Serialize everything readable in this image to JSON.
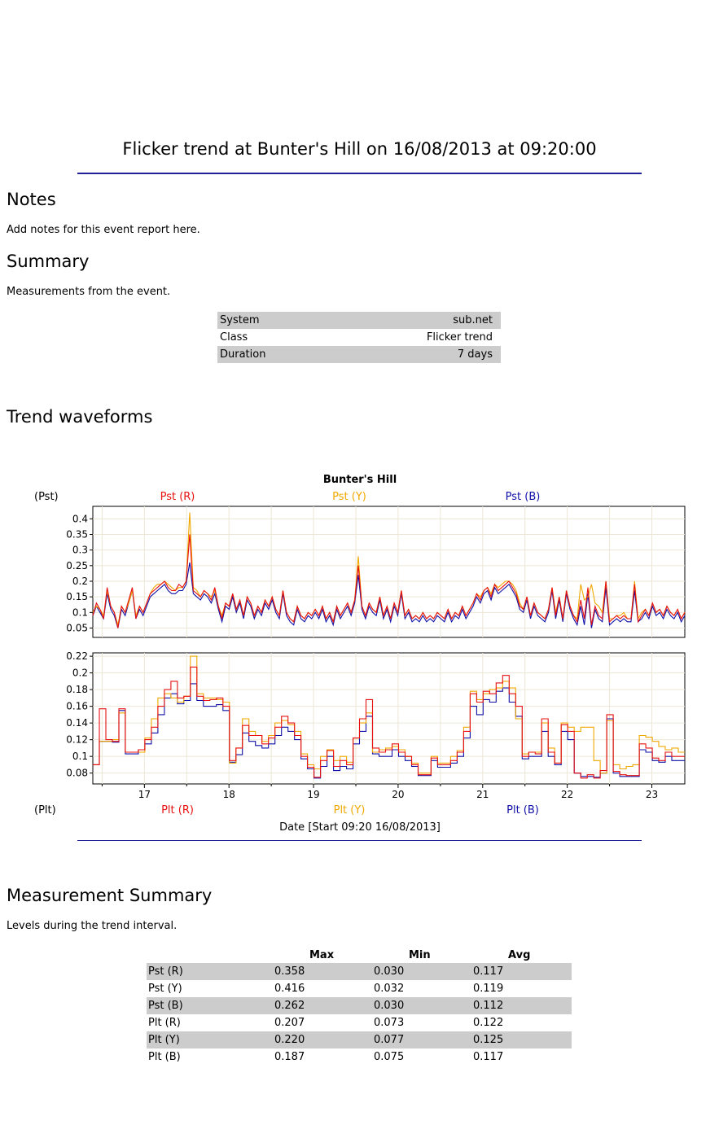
{
  "report": {
    "title": "Flicker trend at Bunter's Hill on 16/08/2013 at 09:20:00"
  },
  "notes": {
    "heading": "Notes",
    "text": "Add notes for this event report here."
  },
  "summary": {
    "heading": "Summary",
    "text": "Measurements from the event.",
    "rows": [
      {
        "label": "System",
        "value": "sub.net"
      },
      {
        "label": "Class",
        "value": "Flicker trend"
      },
      {
        "label": "Duration",
        "value": "7 days"
      }
    ]
  },
  "trend": {
    "heading": "Trend waveforms"
  },
  "chart_data": {
    "type": "line",
    "title": "Bunter's Hill",
    "xlabel": "Date [Start 09:20 16/08/2013]",
    "x_range_days": [
      16.39,
      23.39
    ],
    "x_ticks": [
      "17",
      "18",
      "19",
      "20",
      "21",
      "22",
      "23"
    ],
    "colors": {
      "R": "#e81010",
      "Y": "#f0a800",
      "B": "#1010a8"
    },
    "top_panel": {
      "ylabel": "(Pst)",
      "ylim": [
        0.02,
        0.44
      ],
      "yticks": [
        "0.4",
        "0.35",
        "0.3",
        "0.25",
        "0.2",
        "0.15",
        "0.1",
        "0.05"
      ],
      "series": [
        {
          "name": "Pst (R)",
          "key": "R",
          "max": 0.358,
          "min": 0.03,
          "avg": 0.117,
          "values": [
            0.09,
            0.13,
            0.11,
            0.08,
            0.18,
            0.12,
            0.1,
            0.05,
            0.12,
            0.1,
            0.14,
            0.18,
            0.08,
            0.12,
            0.1,
            0.13,
            0.16,
            0.17,
            0.18,
            0.19,
            0.2,
            0.18,
            0.17,
            0.17,
            0.19,
            0.18,
            0.2,
            0.35,
            0.17,
            0.16,
            0.15,
            0.17,
            0.16,
            0.14,
            0.18,
            0.12,
            0.08,
            0.13,
            0.12,
            0.16,
            0.11,
            0.14,
            0.09,
            0.15,
            0.13,
            0.09,
            0.12,
            0.1,
            0.14,
            0.12,
            0.15,
            0.11,
            0.09,
            0.17,
            0.1,
            0.08,
            0.07,
            0.12,
            0.09,
            0.08,
            0.1,
            0.09,
            0.11,
            0.09,
            0.12,
            0.08,
            0.1,
            0.07,
            0.12,
            0.09,
            0.11,
            0.13,
            0.1,
            0.14,
            0.25,
            0.12,
            0.09,
            0.13,
            0.11,
            0.1,
            0.15,
            0.09,
            0.12,
            0.08,
            0.13,
            0.1,
            0.17,
            0.09,
            0.11,
            0.08,
            0.09,
            0.08,
            0.1,
            0.08,
            0.09,
            0.08,
            0.1,
            0.09,
            0.08,
            0.11,
            0.08,
            0.1,
            0.09,
            0.12,
            0.09,
            0.11,
            0.13,
            0.16,
            0.14,
            0.17,
            0.18,
            0.15,
            0.19,
            0.17,
            0.18,
            0.19,
            0.2,
            0.18,
            0.16,
            0.12,
            0.11,
            0.15,
            0.09,
            0.13,
            0.1,
            0.09,
            0.08,
            0.11,
            0.18,
            0.09,
            0.15,
            0.08,
            0.17,
            0.12,
            0.09,
            0.07,
            0.14,
            0.08,
            0.18,
            0.06,
            0.12,
            0.09,
            0.08,
            0.2,
            0.07,
            0.08,
            0.09,
            0.08,
            0.09,
            0.08,
            0.08,
            0.19,
            0.07,
            0.09,
            0.11,
            0.09,
            0.13,
            0.1,
            0.11,
            0.09,
            0.12,
            0.1,
            0.09,
            0.11,
            0.08,
            0.1
          ]
        },
        {
          "name": "Pst (Y)",
          "key": "Y",
          "max": 0.416,
          "min": 0.032,
          "avg": 0.119,
          "values": [
            0.1,
            0.12,
            0.11,
            0.09,
            0.17,
            0.12,
            0.1,
            0.06,
            0.12,
            0.1,
            0.13,
            0.17,
            0.09,
            0.12,
            0.1,
            0.13,
            0.16,
            0.18,
            0.19,
            0.19,
            0.2,
            0.19,
            0.18,
            0.17,
            0.18,
            0.18,
            0.2,
            0.42,
            0.18,
            0.17,
            0.15,
            0.17,
            0.16,
            0.15,
            0.17,
            0.12,
            0.09,
            0.13,
            0.12,
            0.16,
            0.11,
            0.14,
            0.09,
            0.15,
            0.13,
            0.09,
            0.12,
            0.1,
            0.14,
            0.12,
            0.15,
            0.11,
            0.09,
            0.17,
            0.1,
            0.08,
            0.07,
            0.12,
            0.09,
            0.08,
            0.1,
            0.09,
            0.11,
            0.09,
            0.12,
            0.08,
            0.1,
            0.07,
            0.12,
            0.09,
            0.11,
            0.13,
            0.1,
            0.14,
            0.28,
            0.12,
            0.09,
            0.13,
            0.11,
            0.1,
            0.15,
            0.09,
            0.12,
            0.08,
            0.13,
            0.1,
            0.17,
            0.09,
            0.11,
            0.08,
            0.09,
            0.08,
            0.1,
            0.08,
            0.09,
            0.08,
            0.1,
            0.09,
            0.08,
            0.11,
            0.08,
            0.1,
            0.09,
            0.12,
            0.09,
            0.11,
            0.13,
            0.16,
            0.15,
            0.17,
            0.18,
            0.16,
            0.19,
            0.18,
            0.19,
            0.2,
            0.2,
            0.19,
            0.17,
            0.13,
            0.11,
            0.15,
            0.09,
            0.13,
            0.1,
            0.09,
            0.08,
            0.11,
            0.18,
            0.1,
            0.15,
            0.08,
            0.17,
            0.12,
            0.09,
            0.08,
            0.19,
            0.14,
            0.15,
            0.19,
            0.13,
            0.12,
            0.1,
            0.2,
            0.08,
            0.08,
            0.09,
            0.09,
            0.1,
            0.08,
            0.08,
            0.2,
            0.08,
            0.1,
            0.11,
            0.09,
            0.13,
            0.1,
            0.11,
            0.09,
            0.12,
            0.1,
            0.09,
            0.11,
            0.08,
            0.1
          ]
        },
        {
          "name": "Pst (B)",
          "key": "B",
          "max": 0.262,
          "min": 0.03,
          "avg": 0.112,
          "values": [
            0.09,
            0.12,
            0.1,
            0.08,
            0.16,
            0.11,
            0.09,
            0.05,
            0.11,
            0.09,
            0.13,
            0.17,
            0.08,
            0.11,
            0.09,
            0.12,
            0.15,
            0.16,
            0.17,
            0.18,
            0.19,
            0.17,
            0.16,
            0.16,
            0.17,
            0.17,
            0.19,
            0.26,
            0.16,
            0.15,
            0.14,
            0.16,
            0.15,
            0.13,
            0.16,
            0.11,
            0.07,
            0.12,
            0.11,
            0.15,
            0.1,
            0.13,
            0.08,
            0.14,
            0.12,
            0.08,
            0.11,
            0.09,
            0.13,
            0.11,
            0.14,
            0.1,
            0.08,
            0.16,
            0.09,
            0.07,
            0.06,
            0.11,
            0.08,
            0.07,
            0.09,
            0.08,
            0.1,
            0.08,
            0.11,
            0.07,
            0.09,
            0.06,
            0.11,
            0.08,
            0.1,
            0.12,
            0.09,
            0.13,
            0.22,
            0.11,
            0.08,
            0.12,
            0.1,
            0.09,
            0.14,
            0.08,
            0.11,
            0.07,
            0.12,
            0.09,
            0.16,
            0.08,
            0.1,
            0.07,
            0.08,
            0.07,
            0.09,
            0.07,
            0.08,
            0.07,
            0.09,
            0.08,
            0.07,
            0.1,
            0.07,
            0.09,
            0.08,
            0.11,
            0.08,
            0.1,
            0.12,
            0.15,
            0.13,
            0.16,
            0.17,
            0.14,
            0.18,
            0.16,
            0.17,
            0.18,
            0.19,
            0.17,
            0.15,
            0.11,
            0.1,
            0.14,
            0.08,
            0.12,
            0.09,
            0.08,
            0.07,
            0.1,
            0.17,
            0.08,
            0.14,
            0.07,
            0.16,
            0.11,
            0.08,
            0.06,
            0.12,
            0.06,
            0.16,
            0.05,
            0.11,
            0.08,
            0.07,
            0.18,
            0.06,
            0.07,
            0.08,
            0.07,
            0.08,
            0.07,
            0.07,
            0.17,
            0.07,
            0.08,
            0.1,
            0.08,
            0.12,
            0.09,
            0.1,
            0.08,
            0.11,
            0.09,
            0.08,
            0.1,
            0.07,
            0.09
          ]
        }
      ]
    },
    "bottom_panel": {
      "ylabel": "(Plt)",
      "ylim": [
        0.067,
        0.224
      ],
      "yticks": [
        "0.22",
        "0.2",
        "0.18",
        "0.16",
        "0.14",
        "0.12",
        "0.1",
        "0.08"
      ],
      "series": [
        {
          "name": "Plt (R)",
          "key": "R",
          "max": 0.207,
          "min": 0.073,
          "avg": 0.122,
          "values": [
            0.09,
            0.157,
            0.12,
            0.118,
            0.157,
            0.105,
            0.105,
            0.108,
            0.12,
            0.135,
            0.16,
            0.18,
            0.19,
            0.17,
            0.172,
            0.207,
            0.172,
            0.167,
            0.168,
            0.17,
            0.16,
            0.095,
            0.11,
            0.137,
            0.125,
            0.125,
            0.115,
            0.122,
            0.135,
            0.148,
            0.14,
            0.125,
            0.1,
            0.087,
            0.075,
            0.095,
            0.107,
            0.088,
            0.095,
            0.09,
            0.122,
            0.145,
            0.168,
            0.11,
            0.105,
            0.108,
            0.115,
            0.105,
            0.1,
            0.09,
            0.078,
            0.078,
            0.098,
            0.09,
            0.09,
            0.095,
            0.105,
            0.13,
            0.175,
            0.165,
            0.178,
            0.175,
            0.188,
            0.197,
            0.175,
            0.16,
            0.1,
            0.105,
            0.103,
            0.145,
            0.105,
            0.092,
            0.138,
            0.13,
            0.08,
            0.074,
            0.078,
            0.074,
            0.083,
            0.15,
            0.082,
            0.078,
            0.077,
            0.077,
            0.115,
            0.11,
            0.098,
            0.095,
            0.105,
            0.1,
            0.1
          ]
        },
        {
          "name": "Plt (Y)",
          "key": "Y",
          "max": 0.22,
          "min": 0.077,
          "avg": 0.125,
          "values": [
            0.09,
            0.118,
            0.118,
            0.12,
            0.152,
            0.105,
            0.105,
            0.105,
            0.122,
            0.145,
            0.17,
            0.175,
            0.17,
            0.165,
            0.172,
            0.22,
            0.175,
            0.17,
            0.17,
            0.168,
            0.165,
            0.092,
            0.11,
            0.145,
            0.13,
            0.125,
            0.118,
            0.125,
            0.14,
            0.143,
            0.138,
            0.13,
            0.103,
            0.09,
            0.085,
            0.1,
            0.108,
            0.095,
            0.1,
            0.093,
            0.122,
            0.14,
            0.152,
            0.105,
            0.108,
            0.11,
            0.112,
            0.108,
            0.1,
            0.092,
            0.08,
            0.08,
            0.1,
            0.092,
            0.092,
            0.1,
            0.107,
            0.135,
            0.178,
            0.168,
            0.175,
            0.18,
            0.182,
            0.19,
            0.182,
            0.145,
            0.103,
            0.105,
            0.105,
            0.14,
            0.11,
            0.092,
            0.14,
            0.135,
            0.13,
            0.135,
            0.135,
            0.095,
            0.08,
            0.143,
            0.09,
            0.085,
            0.088,
            0.09,
            0.125,
            0.123,
            0.118,
            0.112,
            0.108,
            0.11,
            0.105
          ]
        },
        {
          "name": "Plt (B)",
          "key": "B",
          "max": 0.187,
          "min": 0.075,
          "avg": 0.117,
          "values": [
            0.09,
            0.118,
            0.118,
            0.117,
            0.155,
            0.103,
            0.103,
            0.108,
            0.115,
            0.128,
            0.15,
            0.17,
            0.175,
            0.163,
            0.167,
            0.187,
            0.167,
            0.16,
            0.16,
            0.162,
            0.155,
            0.093,
            0.102,
            0.128,
            0.118,
            0.113,
            0.11,
            0.115,
            0.125,
            0.135,
            0.13,
            0.12,
            0.097,
            0.085,
            0.074,
            0.088,
            0.1,
            0.083,
            0.088,
            0.085,
            0.115,
            0.13,
            0.148,
            0.103,
            0.1,
            0.1,
            0.108,
            0.1,
            0.095,
            0.088,
            0.077,
            0.077,
            0.095,
            0.087,
            0.087,
            0.092,
            0.1,
            0.122,
            0.16,
            0.15,
            0.168,
            0.165,
            0.178,
            0.182,
            0.165,
            0.148,
            0.097,
            0.1,
            0.1,
            0.13,
            0.1,
            0.09,
            0.13,
            0.12,
            0.08,
            0.076,
            0.076,
            0.075,
            0.08,
            0.145,
            0.08,
            0.076,
            0.076,
            0.076,
            0.108,
            0.105,
            0.095,
            0.093,
            0.1,
            0.095,
            0.095
          ]
        }
      ]
    }
  },
  "measurement_summary": {
    "heading": "Measurement Summary",
    "text": "Levels during the trend interval.",
    "columns": [
      "Max",
      "Min",
      "Avg"
    ],
    "rows": [
      {
        "label": "Pst (R)",
        "max": "0.358",
        "min": "0.030",
        "avg": "0.117"
      },
      {
        "label": "Pst (Y)",
        "max": "0.416",
        "min": "0.032",
        "avg": "0.119"
      },
      {
        "label": "Pst (B)",
        "max": "0.262",
        "min": "0.030",
        "avg": "0.112"
      },
      {
        "label": "Plt (R)",
        "max": "0.207",
        "min": "0.073",
        "avg": "0.122"
      },
      {
        "label": "Plt (Y)",
        "max": "0.220",
        "min": "0.077",
        "avg": "0.125"
      },
      {
        "label": "Plt (B)",
        "max": "0.187",
        "min": "0.075",
        "avg": "0.117"
      }
    ]
  }
}
